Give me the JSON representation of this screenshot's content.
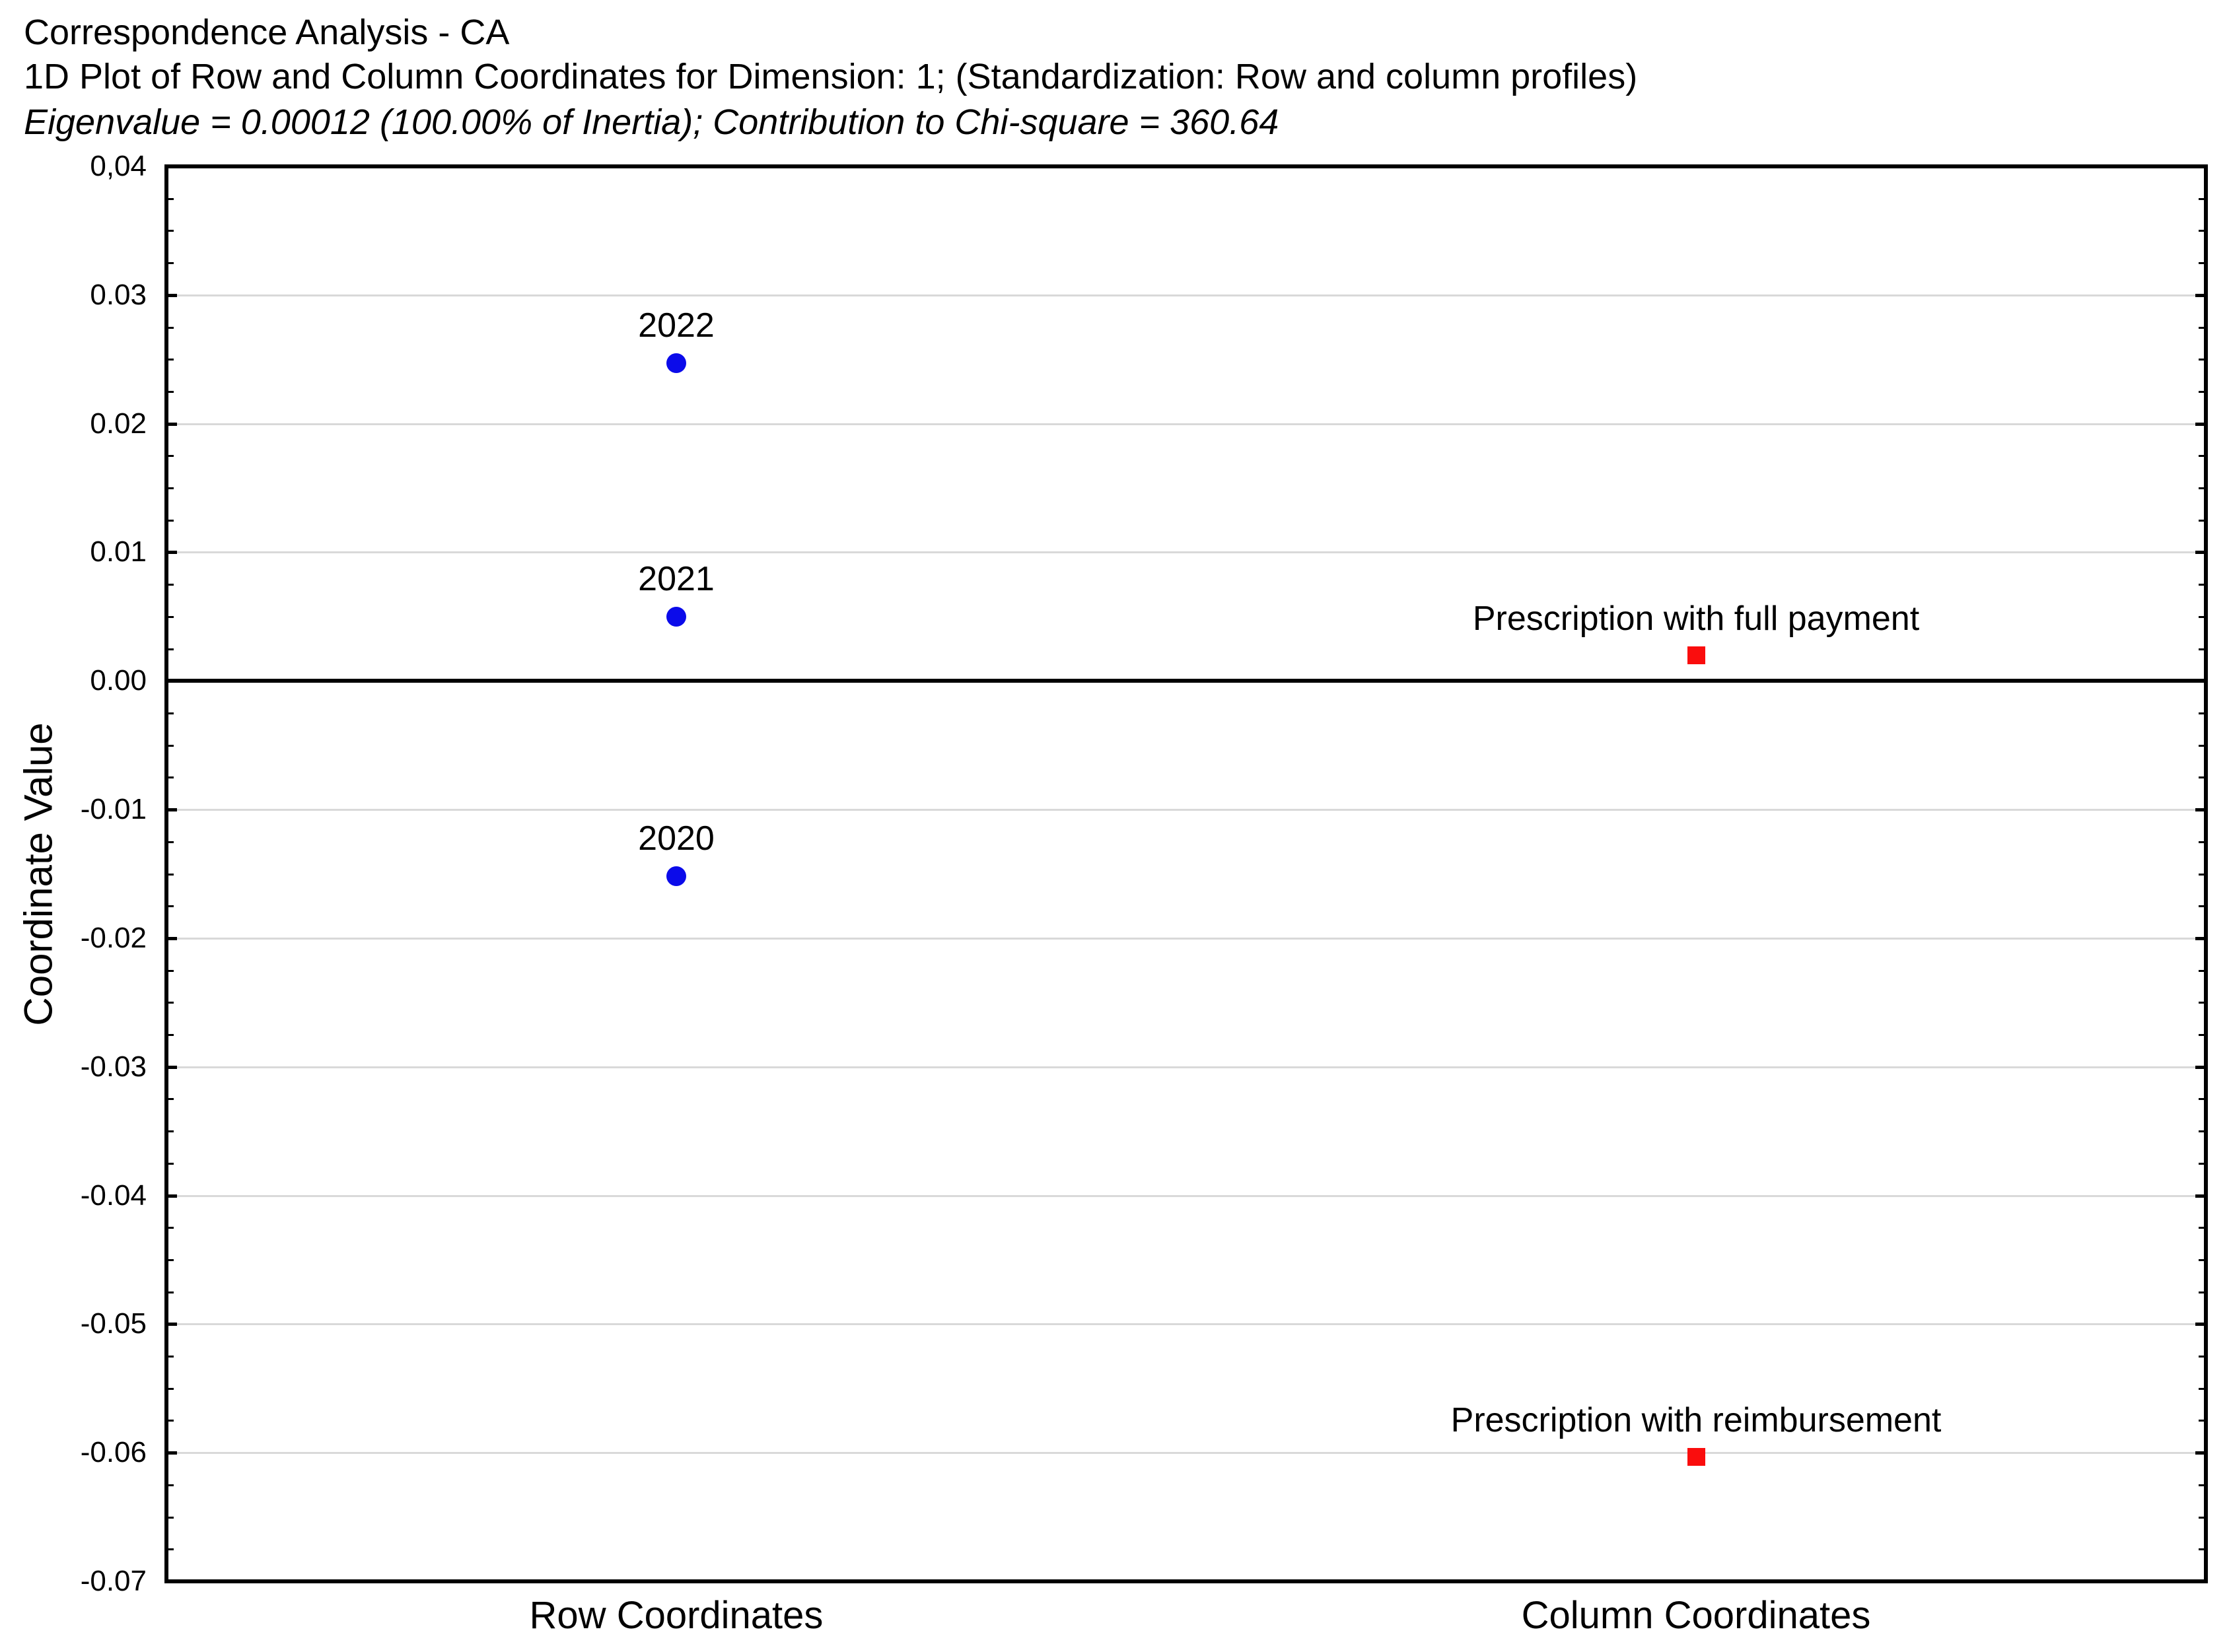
{
  "header": {
    "title": "Correspondence Analysis - CA",
    "subtitle": "1D Plot of Row and Column Coordinates for Dimension: 1; (Standardization: Row and column profiles)",
    "stats_line": "Eigenvalue = 0.00012 (100.00% of Inertia); Contribution to Chi-square = 360.64"
  },
  "chart_data": {
    "type": "scatter",
    "title": "Correspondence Analysis - CA",
    "subtitle": "1D Plot of Row and Column Coordinates for Dimension: 1; (Standardization: Row and column profiles)",
    "annotation_line": "Eigenvalue = 0.00012 (100.00% of Inertia); Contribution to Chi-square = 360.64",
    "xlabel": "",
    "ylabel": "Coordinate Value",
    "ylim": [
      -0.07,
      0.04
    ],
    "y_major_step": 0.01,
    "y_minor_step": 0.0025,
    "grid": "horizontal-major",
    "zero_line_at": 0,
    "legend": "none",
    "y_ticks": [
      {
        "value": 0.04,
        "label": "0,04"
      },
      {
        "value": 0.03,
        "label": "0.03"
      },
      {
        "value": 0.02,
        "label": "0.02"
      },
      {
        "value": 0.01,
        "label": "0.01"
      },
      {
        "value": 0.0,
        "label": "0.00"
      },
      {
        "value": -0.01,
        "label": "-0.01"
      },
      {
        "value": -0.02,
        "label": "-0.02"
      },
      {
        "value": -0.03,
        "label": "-0.03"
      },
      {
        "value": -0.04,
        "label": "-0.04"
      },
      {
        "value": -0.05,
        "label": "-0.05"
      },
      {
        "value": -0.06,
        "label": "-0.06"
      },
      {
        "value": -0.07,
        "label": "-0.07"
      }
    ],
    "categories": [
      "Row Coordinates",
      "Column Coordinates"
    ],
    "series": [
      {
        "name": "Row Coordinates",
        "marker": "circle",
        "color": "#0B0BEA",
        "category_index": 0,
        "points": [
          {
            "label": "2022",
            "value": 0.0247
          },
          {
            "label": "2021",
            "value": 0.005
          },
          {
            "label": "2020",
            "value": -0.0152
          }
        ]
      },
      {
        "name": "Column Coordinates",
        "marker": "square",
        "color": "#FA0D0D",
        "category_index": 1,
        "points": [
          {
            "label": "Prescription with full payment",
            "value": 0.002
          },
          {
            "label": "Prescription with reimbursement",
            "value": -0.0603
          }
        ]
      }
    ],
    "colors": {
      "grid": "#D9D9D9",
      "axis": "#000000",
      "zero_line": "#000000",
      "text": "#000000",
      "background": "#FFFFFF"
    }
  }
}
